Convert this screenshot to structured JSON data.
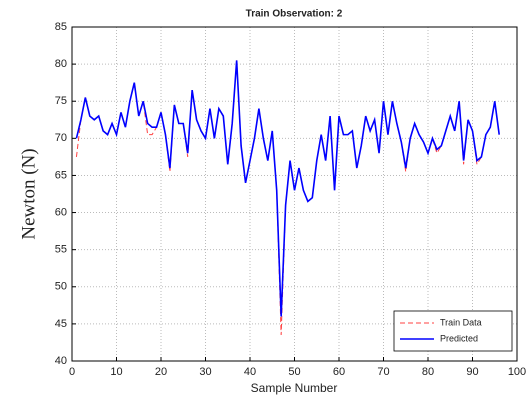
{
  "chart_data": {
    "type": "line",
    "title": "Train Observation: 2",
    "xlabel": "Sample Number",
    "ylabel": "Newton (N)",
    "x": [
      1,
      2,
      3,
      4,
      5,
      6,
      7,
      8,
      9,
      10,
      11,
      12,
      13,
      14,
      15,
      16,
      17,
      18,
      19,
      20,
      21,
      22,
      23,
      24,
      25,
      26,
      27,
      28,
      29,
      30,
      31,
      32,
      33,
      34,
      35,
      36,
      37,
      38,
      39,
      40,
      41,
      42,
      43,
      44,
      45,
      46,
      47,
      48,
      49,
      50,
      51,
      52,
      53,
      54,
      55,
      56,
      57,
      58,
      59,
      60,
      61,
      62,
      63,
      64,
      65,
      66,
      67,
      68,
      69,
      70,
      71,
      72,
      73,
      74,
      75,
      76,
      77,
      78,
      79,
      80,
      81,
      82,
      83,
      84,
      85,
      86,
      87,
      88,
      89,
      90,
      91,
      92,
      93,
      94,
      95,
      96
    ],
    "series": [
      {
        "name": "Train Data",
        "color": "#ff4040",
        "dashed": true,
        "values": [
          67.5,
          72.5,
          75.5,
          73,
          72.5,
          73,
          71,
          70.5,
          72,
          70.5,
          73.5,
          71.5,
          75,
          77.5,
          73,
          75,
          70.5,
          70.5,
          71.5,
          73.5,
          70.5,
          65.5,
          74.5,
          72,
          72,
          67.5,
          76.5,
          72.5,
          71,
          70,
          74,
          70,
          74,
          73,
          66.5,
          72,
          80.5,
          69,
          64,
          67,
          70,
          74,
          70,
          67,
          71,
          63,
          43.5,
          61,
          67,
          63,
          66,
          63,
          61.5,
          62,
          67,
          70.5,
          67,
          73,
          63,
          73,
          70.5,
          70.5,
          71,
          66,
          69,
          73,
          71,
          72.5,
          68,
          75,
          70.5,
          75,
          72,
          69.5,
          65.5,
          70,
          72,
          70.5,
          69.5,
          68,
          70,
          68,
          69,
          71,
          73,
          71,
          75,
          66.5,
          72.5,
          71,
          66.5,
          67.5,
          70.5,
          71.5,
          75,
          70.5
        ]
      },
      {
        "name": "Predicted",
        "color": "#0000ff",
        "dashed": false,
        "values": [
          70,
          72.5,
          75.5,
          73,
          72.5,
          73,
          71,
          70.5,
          72,
          70.5,
          73.5,
          71.5,
          75,
          77.5,
          73,
          75,
          72,
          71.5,
          71.5,
          73.5,
          70.5,
          66,
          74.5,
          72,
          72,
          68,
          76.5,
          72.5,
          71,
          70,
          74,
          70,
          74,
          73,
          66.5,
          72,
          80.5,
          69,
          64,
          67,
          70,
          74,
          70,
          67,
          71,
          63,
          46,
          61,
          67,
          63,
          66,
          63,
          61.5,
          62,
          67,
          70.5,
          67,
          73,
          63,
          73,
          70.5,
          70.5,
          71,
          66,
          69,
          73,
          71,
          72.5,
          68,
          75,
          70.5,
          75,
          72,
          69.5,
          66,
          70,
          72,
          70.5,
          69.5,
          68,
          70,
          68.5,
          69,
          71,
          73,
          71,
          75,
          67,
          72.5,
          71,
          67,
          67.5,
          70.5,
          71.5,
          75,
          70.5
        ]
      }
    ],
    "xlim": [
      0,
      100
    ],
    "xticks": [
      0,
      10,
      20,
      30,
      40,
      50,
      60,
      70,
      80,
      90,
      100
    ],
    "ylim": [
      40,
      85
    ],
    "yticks": [
      40,
      45,
      50,
      55,
      60,
      65,
      70,
      75,
      80,
      85
    ],
    "grid": true,
    "legend": "lower right"
  }
}
